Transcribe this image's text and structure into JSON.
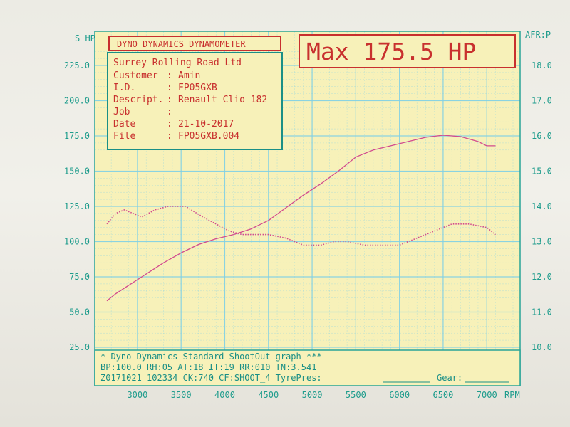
{
  "chart_data": {
    "type": "line",
    "header": "DYNO DYNAMICS DYNAMOMETER",
    "max_label": "Max 175.5 HP",
    "left_axis_label": "S_HP",
    "right_axis_label": "AFR:P",
    "x_unit": "RPM",
    "x_ticks": [
      "3000",
      "3500",
      "4000",
      "4500",
      "5000",
      "5500",
      "6000",
      "6500",
      "7000"
    ],
    "y_left_ticks": [
      "225.0",
      "200.0",
      "175.0",
      "150.0",
      "125.0",
      "100.0",
      "75.0",
      "50.0",
      "25.0"
    ],
    "y_right_ticks": [
      "18.0",
      "17.0",
      "16.0",
      "15.0",
      "14.0",
      "13.0",
      "12.0",
      "11.0",
      "10.0"
    ],
    "x_range": [
      2650,
      7300
    ],
    "y_left_range": [
      25,
      225
    ],
    "y_right_range": [
      10,
      18
    ],
    "grid": true,
    "colors": {
      "grid": "#7fd0e6",
      "frame": "#28a497",
      "red": "#c8302e",
      "series": "#d24a8e",
      "paper": "#f7f1b9"
    },
    "series": [
      {
        "name": "",
        "axis": "left",
        "x": [
          2650,
          2750,
          2900,
          3100,
          3300,
          3500,
          3700,
          3900,
          4100,
          4300,
          4500,
          4700,
          4900,
          5100,
          5300,
          5500,
          5700,
          5900,
          6100,
          6300,
          6500,
          6700,
          6900,
          7000,
          7100
        ],
        "values": [
          58,
          63,
          69,
          77,
          85,
          92,
          98,
          102,
          105,
          109,
          115,
          124,
          133,
          141,
          150,
          160,
          165,
          168,
          171,
          174,
          175.5,
          174.5,
          171,
          168,
          168
        ]
      },
      {
        "name": "",
        "axis": "right",
        "style": "dotted",
        "x": [
          2650,
          2750,
          2850,
          2950,
          3050,
          3200,
          3350,
          3550,
          3750,
          3900,
          4050,
          4200,
          4350,
          4500,
          4700,
          4900,
          5100,
          5250,
          5400,
          5600,
          5800,
          6000,
          6200,
          6400,
          6600,
          6800,
          7000,
          7100
        ],
        "values": [
          13.5,
          13.8,
          13.9,
          13.8,
          13.7,
          13.9,
          14.0,
          14.0,
          13.7,
          13.5,
          13.3,
          13.2,
          13.2,
          13.2,
          13.1,
          12.9,
          12.9,
          13.0,
          13.0,
          12.9,
          12.9,
          12.9,
          13.1,
          13.3,
          13.5,
          13.5,
          13.4,
          13.2
        ]
      }
    ]
  },
  "info_box": {
    "company": "Surrey Rolling Road Ltd",
    "rows": [
      {
        "label": "Customer",
        "value": "Amin"
      },
      {
        "label": "I.D.",
        "value": "FP05GXB"
      },
      {
        "label": "Descript.",
        "value": "Renault Clio 182"
      },
      {
        "label": "Job",
        "value": ""
      },
      {
        "label": "Date",
        "value": "21-10-2017"
      },
      {
        "label": "File",
        "value": "FP05GXB.004"
      }
    ]
  },
  "footer": {
    "line1": "* Dyno Dynamics Standard ShootOut graph ***",
    "line2": "BP:100.0 RH:05 AT:18 IT:19  RR:010 TN:3.541",
    "line3_a": "Z0171021 102334 CK:740 CF:SHOOT_4  TyrePres:",
    "line3_b": "Gear:"
  }
}
